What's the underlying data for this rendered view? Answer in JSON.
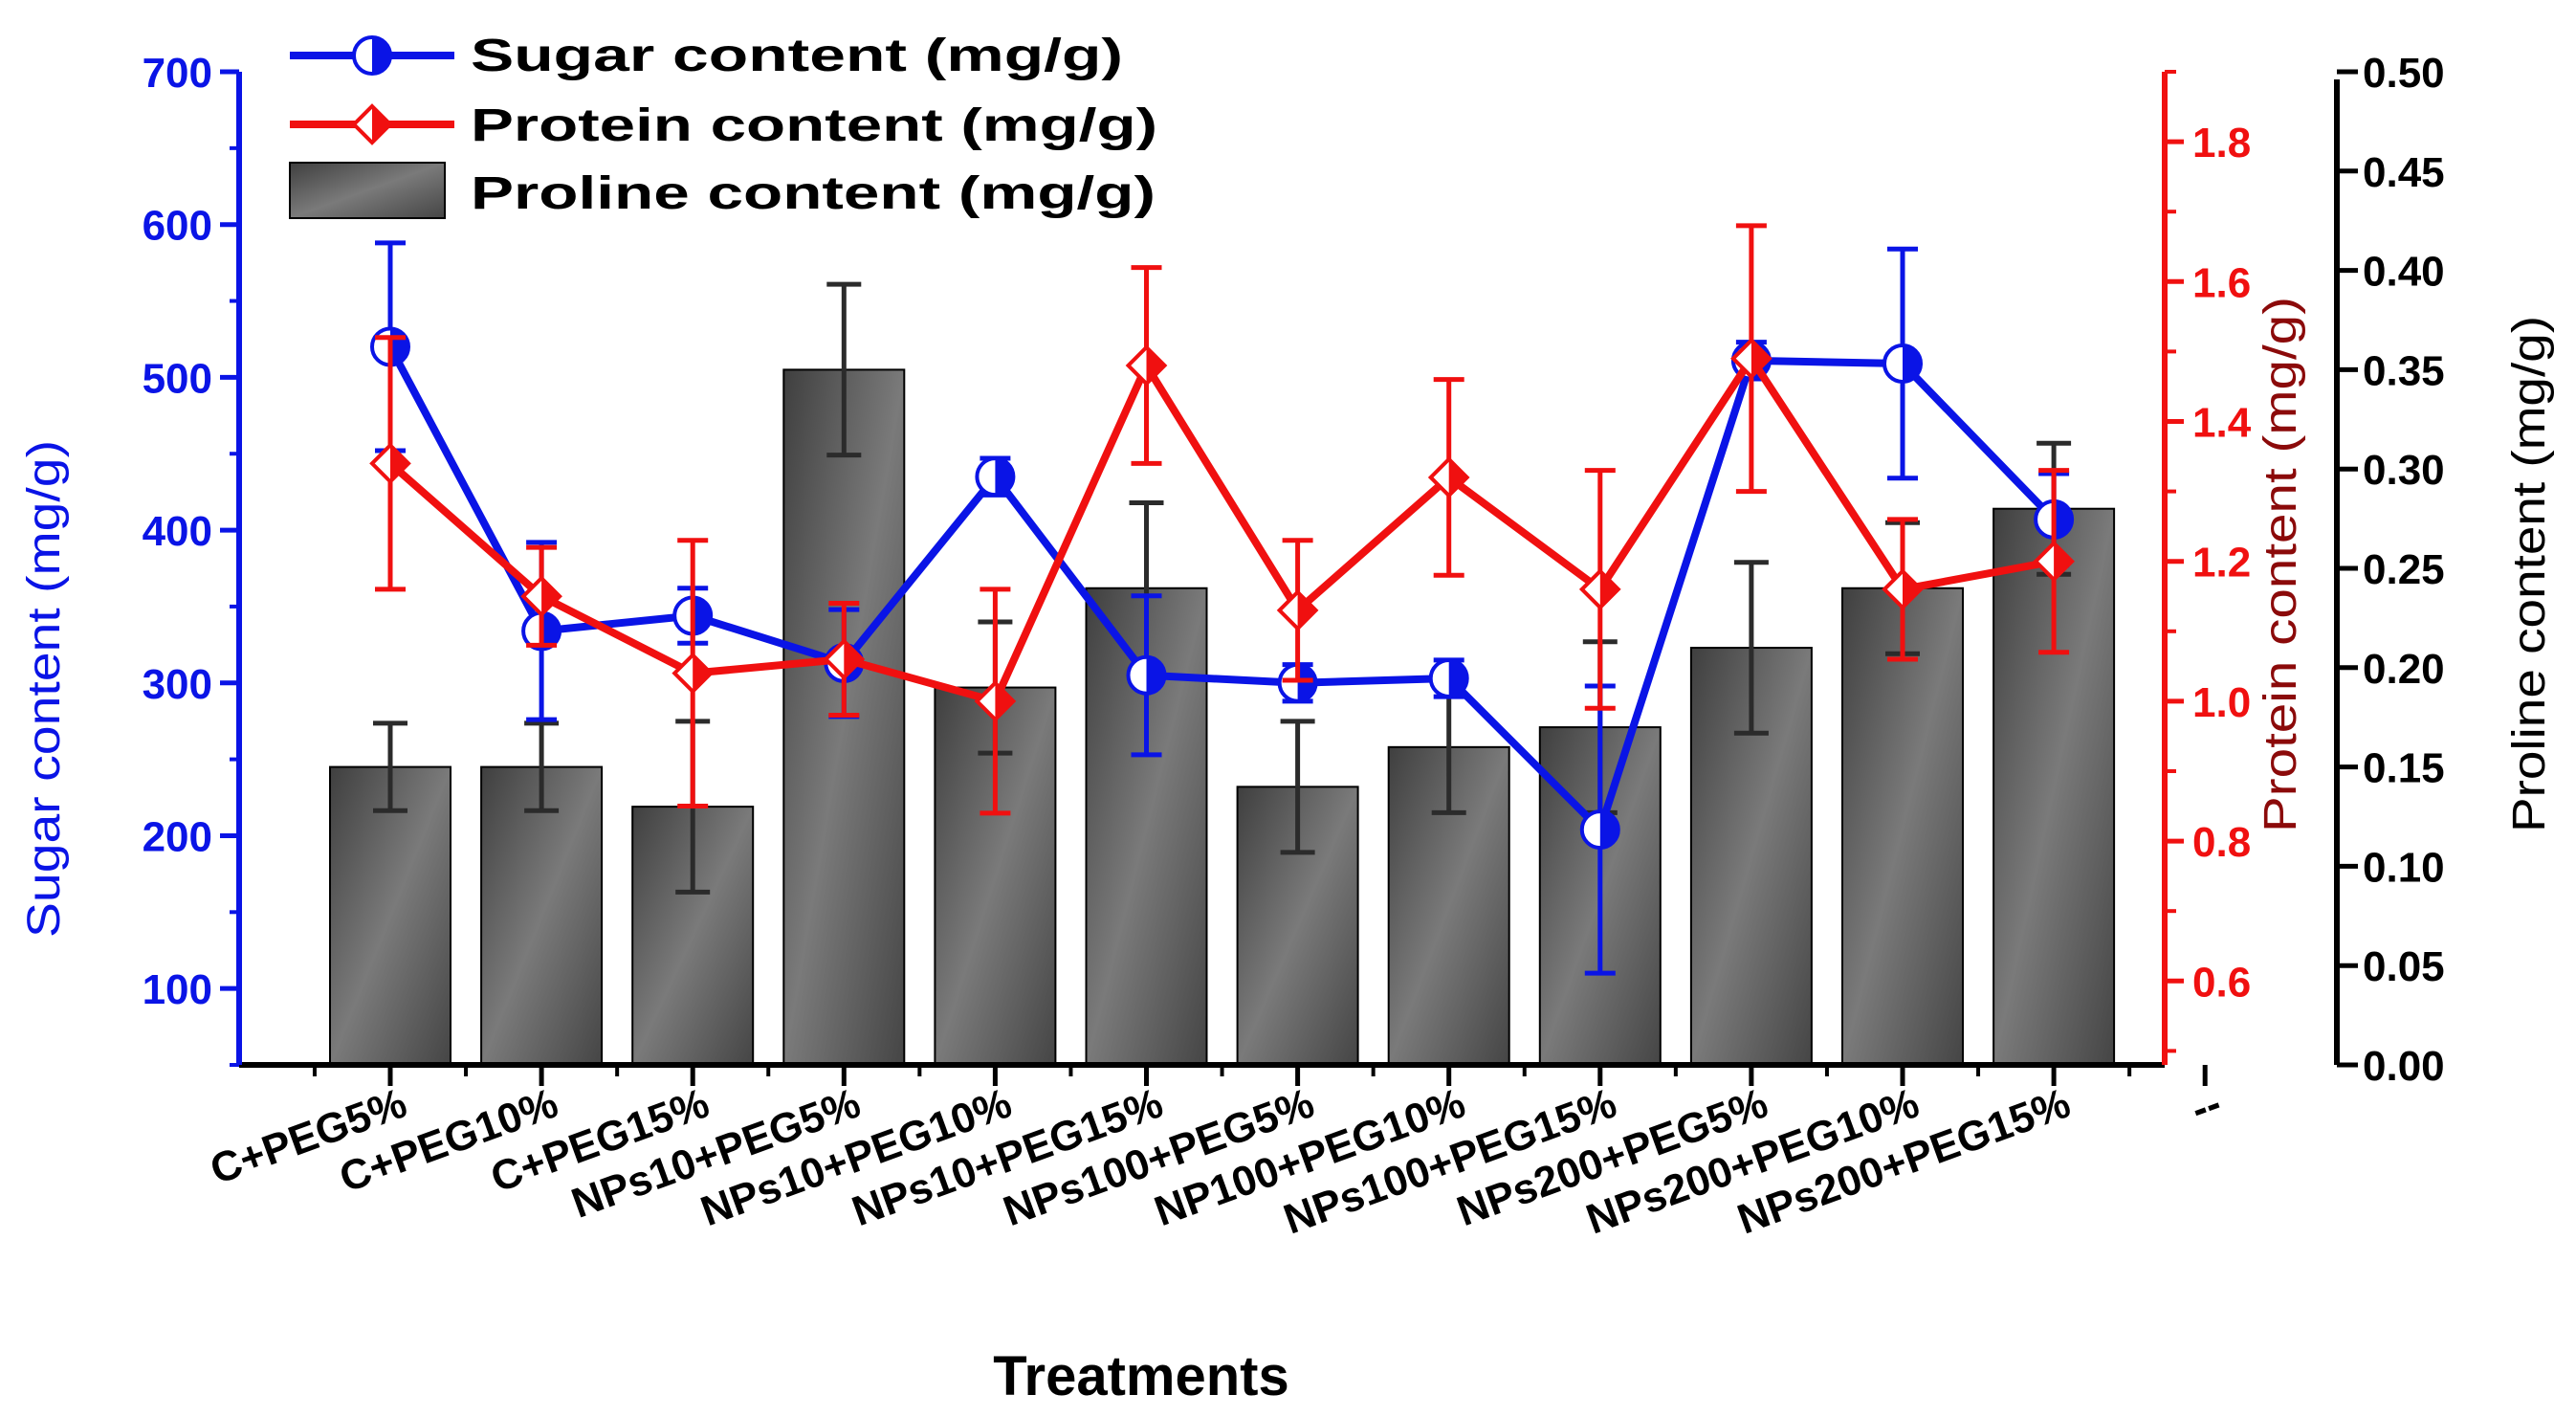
{
  "chart_data": {
    "type": "bar+line",
    "title": "",
    "xlabel": "Treatments",
    "categories": [
      "C+PEG5%",
      "C+PEG10%",
      "C+PEG15%",
      "NPs10+PEG5%",
      "NPs10+PEG10%",
      "NPs10+PEG15%",
      "NPs100+PEG5%",
      "NP100+PEG10%",
      "NPs100+PEG15%",
      "NPs200+PEG5%",
      "NPs200+PEG10%",
      "NPs200+PEG15%"
    ],
    "extra_tick_label": "--",
    "axes": {
      "left": {
        "label": "Sugar content (mg/g)",
        "range": [
          50,
          700
        ],
        "ticks": [
          100,
          200,
          300,
          400,
          500,
          600,
          700
        ],
        "color": "#0a14e6"
      },
      "right_inner": {
        "label": "Protein content (mg/g)",
        "range": [
          0.48,
          1.9
        ],
        "ticks": [
          "0.6",
          "0.8",
          "1.0",
          "1.2",
          "1.4",
          "1.6",
          "1.8"
        ],
        "color": "#f01010"
      },
      "right_outer": {
        "label": "Proline content (mg/g)",
        "range": [
          0,
          0.5
        ],
        "ticks": [
          "0.00",
          "0.05",
          "0.10",
          "0.15",
          "0.20",
          "0.25",
          "0.30",
          "0.35",
          "0.40",
          "0.45",
          "0.50"
        ],
        "color": "#000000"
      }
    },
    "series": [
      {
        "name": "Proline content (mg/g)",
        "kind": "bar",
        "axis": "right_outer",
        "color": "#5e5e5e",
        "values": [
          0.15,
          0.15,
          0.13,
          0.35,
          0.19,
          0.24,
          0.14,
          0.16,
          0.17,
          0.21,
          0.24,
          0.28
        ],
        "errors": [
          0.022,
          0.022,
          0.043,
          0.043,
          0.033,
          0.043,
          0.033,
          0.033,
          0.043,
          0.043,
          0.033,
          0.033
        ]
      },
      {
        "name": "Sugar content (mg/g)",
        "kind": "line",
        "axis": "left",
        "color": "#0a14e6",
        "marker": "half-filled circle",
        "values": [
          520,
          334,
          344,
          313,
          435,
          305,
          300,
          303,
          204,
          511,
          509,
          407
        ],
        "errors": [
          68,
          58,
          18,
          35,
          12,
          52,
          12,
          12,
          94,
          12,
          75,
          30
        ]
      },
      {
        "name": "Protein content (mg/g)",
        "kind": "line",
        "axis": "right_inner",
        "color": "#f01010",
        "marker": "half-filled diamond",
        "values": [
          1.34,
          1.15,
          1.04,
          1.06,
          1.0,
          1.48,
          1.13,
          1.32,
          1.16,
          1.49,
          1.16,
          1.2
        ],
        "errors": [
          0.18,
          0.07,
          0.19,
          0.08,
          0.16,
          0.14,
          0.1,
          0.14,
          0.17,
          0.19,
          0.1,
          0.13
        ]
      }
    ],
    "legend": {
      "position": "top-left",
      "entries": [
        "Sugar content (mg/g)",
        "Protein content (mg/g)",
        "Proline content (mg/g)"
      ]
    }
  }
}
